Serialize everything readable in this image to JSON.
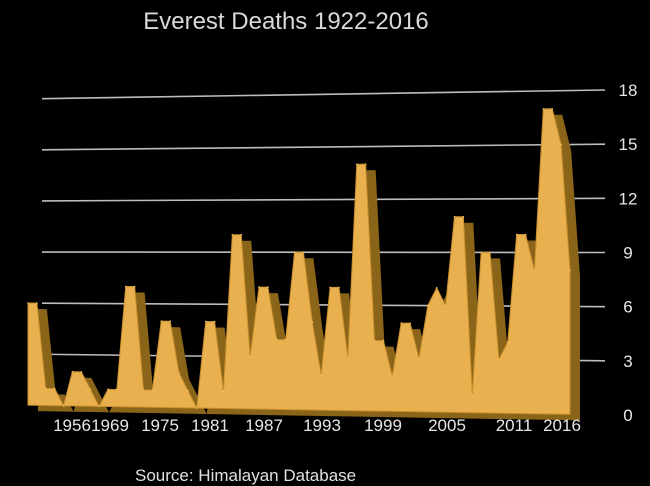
{
  "chart_data": {
    "type": "area",
    "title": "Everest Deaths 1922-2016",
    "source": "Source: Himalayan Database",
    "ylim": [
      0,
      18
    ],
    "y_ticks": [
      0,
      3,
      6,
      9,
      12,
      15,
      18
    ],
    "x_tick_labels": [
      "1956",
      "1969",
      "1975",
      "1981",
      "1987",
      "1993",
      "1999",
      "2005",
      "2011",
      "2016"
    ],
    "grid": true,
    "colors": {
      "area_front": "#e8b04f",
      "area_side": "#8a6418",
      "background": "#000000",
      "grid": "#bdbdbd",
      "text": "#e6e6e6"
    },
    "series": [
      {
        "values": [
          6,
          6,
          1,
          1,
          0,
          2,
          2,
          1,
          0,
          1,
          1,
          7,
          7,
          1,
          1,
          5,
          5,
          2,
          1,
          0,
          5,
          5,
          1,
          10,
          10,
          3,
          7,
          7,
          4,
          4,
          9,
          9,
          5,
          2,
          7,
          7,
          3,
          14,
          14,
          4,
          4,
          2,
          5,
          5,
          3,
          6,
          7,
          6,
          11,
          11,
          1,
          9,
          9,
          3,
          4,
          10,
          10,
          8,
          17,
          17,
          15,
          8
        ]
      }
    ]
  }
}
